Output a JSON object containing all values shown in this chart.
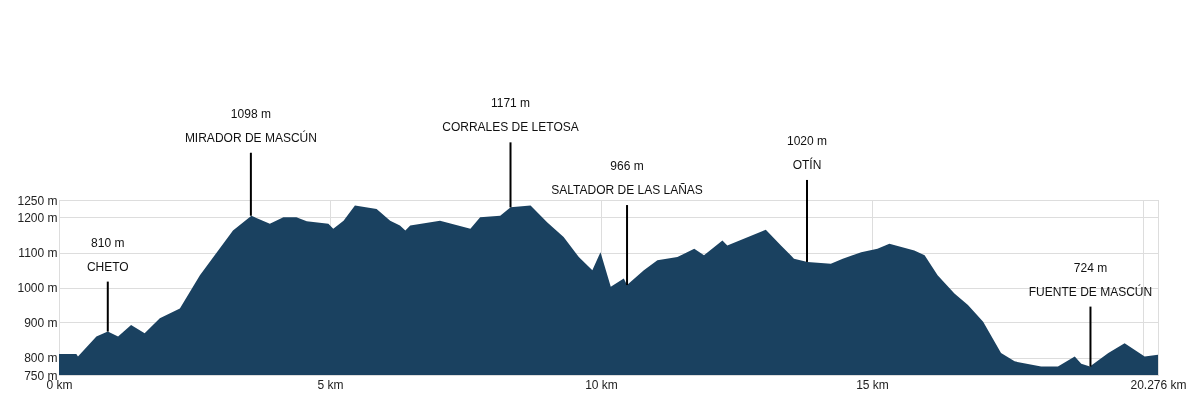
{
  "chart_data": {
    "type": "area",
    "color": "#1a4160",
    "grid": true,
    "x": [
      0,
      0.32,
      0.35,
      0.69,
      0.9,
      1.09,
      1.33,
      1.58,
      1.86,
      2.23,
      2.6,
      3.21,
      3.55,
      3.89,
      4.14,
      4.38,
      4.57,
      4.97,
      5.06,
      5.25,
      5.46,
      5.86,
      6.11,
      6.29,
      6.39,
      6.48,
      7.03,
      7.59,
      7.77,
      8.14,
      8.33,
      8.7,
      9.01,
      9.31,
      9.59,
      9.84,
      9.99,
      10.18,
      10.42,
      10.48,
      10.79,
      11.04,
      11.41,
      11.72,
      11.9,
      12.24,
      12.33,
      13.04,
      13.32,
      13.5,
      13.56,
      13.81,
      14.24,
      14.46,
      14.8,
      15.1,
      15.32,
      15.78,
      15.97,
      16.21,
      16.52,
      16.77,
      17.05,
      17.38,
      17.63,
      18.12,
      18.43,
      18.74,
      18.86,
      19.02,
      19.36,
      19.66,
      20.03,
      20.276
    ],
    "values": [
      810,
      810,
      803,
      860,
      874,
      860,
      893,
      869,
      912,
      940,
      1035,
      1163,
      1205,
      1182,
      1201,
      1201,
      1189,
      1182,
      1168,
      1191,
      1234,
      1224,
      1191,
      1177,
      1163,
      1177,
      1191,
      1168,
      1201,
      1205,
      1229,
      1234,
      1186,
      1144,
      1087,
      1049,
      1101,
      1002,
      1026,
      1007,
      1049,
      1078,
      1087,
      1111,
      1092,
      1134,
      1120,
      1165,
      1120,
      1092,
      1082,
      1073,
      1068,
      1082,
      1101,
      1111,
      1125,
      1106,
      1092,
      1035,
      983,
      950,
      902,
      813,
      789,
      774,
      774,
      803,
      782,
      774,
      813,
      841,
      803,
      808
    ],
    "xlim": [
      0,
      20.276
    ],
    "xticks": [
      {
        "value": 0,
        "label": "0 km"
      },
      {
        "value": 5,
        "label": "5 km"
      },
      {
        "value": 10,
        "label": "10 km"
      },
      {
        "value": 15,
        "label": "15 km"
      },
      {
        "value": 20,
        "label": null
      },
      {
        "value": 20.276,
        "label": "20.276 km"
      }
    ],
    "ylim": [
      750,
      1250
    ],
    "yticks": [
      {
        "value": 750,
        "label": "750 m"
      },
      {
        "value": 800,
        "label": "800 m"
      },
      {
        "value": 900,
        "label": "900 m"
      },
      {
        "value": 1000,
        "label": "1000 m"
      },
      {
        "value": 1100,
        "label": "1100 m"
      },
      {
        "value": 1200,
        "label": "1200 m"
      },
      {
        "value": 1250,
        "label": "1250 m"
      }
    ],
    "annotations": [
      {
        "text": "810 m\nCHETO",
        "x": 0.9,
        "y": 874
      },
      {
        "text": "1098 m\nMIRADOR DE MASCÚN",
        "x": 3.54,
        "y": 1205
      },
      {
        "text": "1171 m\nCORRALES DE LETOSA",
        "x": 8.33,
        "y": 1229
      },
      {
        "text": "966 m\nSALTADOR DE LAS LAÑAS",
        "x": 10.48,
        "y": 1007
      },
      {
        "text": "1020 m\nOTÍN",
        "x": 13.8,
        "y": 1073
      },
      {
        "text": "724 m\nFUENTE DE MASCÚN",
        "x": 19.03,
        "y": 774
      }
    ]
  }
}
